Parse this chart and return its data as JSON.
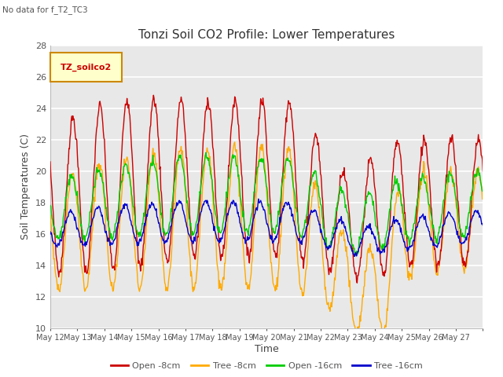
{
  "title": "Tonzi Soil CO2 Profile: Lower Temperatures",
  "subtitle": "No data for f_T2_TC3",
  "xlabel": "Time",
  "ylabel": "Soil Temperatures (C)",
  "ylim": [
    10,
    28
  ],
  "bg_color": "#e8e8e8",
  "fig_color": "#ffffff",
  "legend_label": "TZ_soilco2",
  "series_colors": {
    "open8": "#cc0000",
    "tree8": "#ffaa00",
    "open16": "#00cc00",
    "tree16": "#0000cc"
  },
  "series_names": [
    "Open -8cm",
    "Tree -8cm",
    "Open -16cm",
    "Tree -16cm"
  ],
  "xtick_labels": [
    "May 12",
    "May 13",
    "May 14",
    "May 15",
    "May 16",
    "May 17",
    "May 18",
    "May 19",
    "May 20",
    "May 21",
    "May 22",
    "May 23",
    "May 24",
    "May 25",
    "May 26",
    "May 27"
  ],
  "n_days": 16,
  "pts_per_day": 48
}
